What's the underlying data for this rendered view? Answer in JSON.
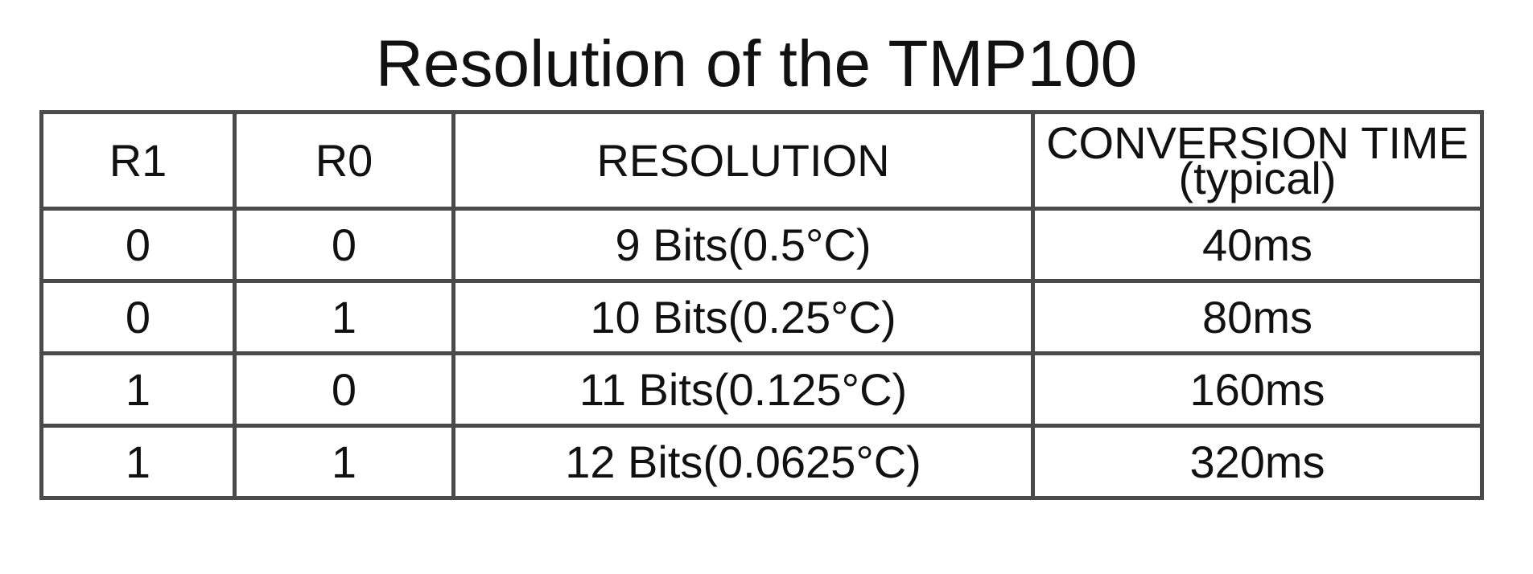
{
  "title": "Resolution of the TMP100",
  "table": {
    "headers": {
      "r1": "R1",
      "r0": "R0",
      "resolution": "RESOLUTION",
      "conversion_time": "CONVERSION TIME",
      "conversion_time_note": "(typical)"
    },
    "rows": [
      {
        "r1": "0",
        "r0": "0",
        "resolution": "9 Bits(0.5°C)",
        "conversion_time": "40ms"
      },
      {
        "r1": "0",
        "r0": "1",
        "resolution": "10 Bits(0.25°C)",
        "conversion_time": "80ms"
      },
      {
        "r1": "1",
        "r0": "0",
        "resolution": "11 Bits(0.125°C)",
        "conversion_time": "160ms"
      },
      {
        "r1": "1",
        "r0": "1",
        "resolution": "12 Bits(0.0625°C)",
        "conversion_time": "320ms"
      }
    ]
  }
}
